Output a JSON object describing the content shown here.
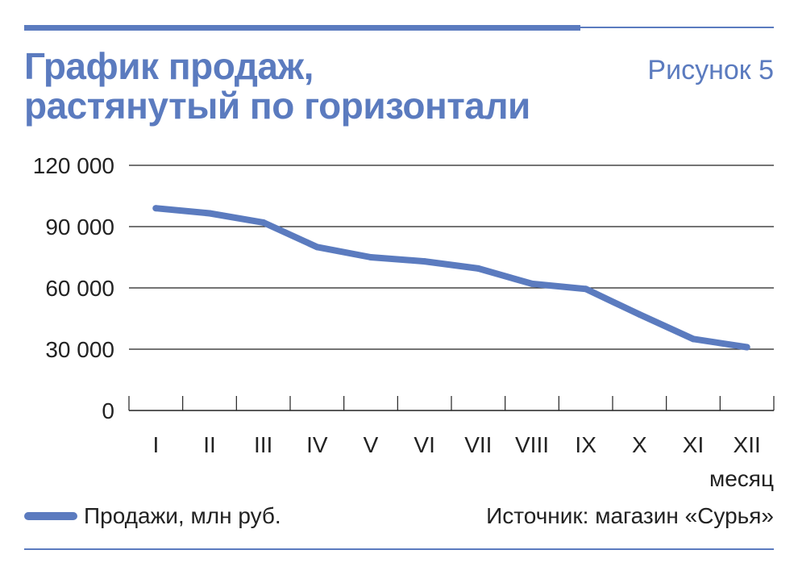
{
  "header": {
    "title_line1": "График продаж,",
    "title_line2": "растянутый по горизонтали",
    "figure_label": "Рисунок 5"
  },
  "chart_data": {
    "type": "line",
    "categories": [
      "I",
      "II",
      "III",
      "IV",
      "V",
      "VI",
      "VII",
      "VIII",
      "IX",
      "X",
      "XI",
      "XII"
    ],
    "series": [
      {
        "name": "Продажи, млн руб.",
        "values": [
          99000,
          96500,
          92000,
          80000,
          75000,
          73000,
          69500,
          62000,
          59500,
          47000,
          35000,
          31000
        ]
      }
    ],
    "y_ticks": [
      0,
      30000,
      60000,
      90000,
      120000
    ],
    "y_tick_labels": [
      "0",
      "30 000",
      "60 000",
      "90 000",
      "120 000"
    ],
    "ylim": [
      0,
      120000
    ],
    "xlabel": "месяц",
    "ylabel": "",
    "grid": true
  },
  "legend": {
    "label": "Продажи, млн руб."
  },
  "footer": {
    "source": "Источник: магазин «Сурья»"
  },
  "colors": {
    "accent": "#5b7bbf",
    "text": "#222222",
    "grid": "#222222"
  }
}
